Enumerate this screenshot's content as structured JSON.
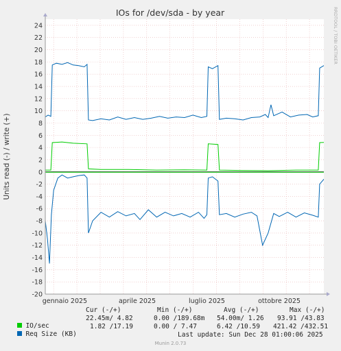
{
  "chart_data": {
    "type": "line",
    "title": "IOs for /dev/sda - by year",
    "ylabel": "Units read (-) / write (+)",
    "side_label": "RRDTOOL / TOBI OETIKER",
    "ylim": [
      -20,
      25
    ],
    "yticks": [
      24,
      22,
      20,
      18,
      16,
      14,
      12,
      10,
      8,
      6,
      4,
      2,
      0,
      -2,
      -4,
      -6,
      -8,
      -10,
      -12,
      -14,
      -16,
      -18,
      -20
    ],
    "x_tick_labels": [
      "gennaio 2025",
      "aprile 2025",
      "luglio 2025",
      "ottobre 2025"
    ],
    "x_ticks": [
      0.07,
      0.33,
      0.58,
      0.84
    ],
    "xlim": [
      0,
      1
    ],
    "series": [
      {
        "name": "Req Size (KB) write",
        "color": "#0066b3",
        "x": [
          0.0,
          0.01,
          0.02,
          0.025,
          0.04,
          0.06,
          0.08,
          0.1,
          0.12,
          0.14,
          0.15,
          0.155,
          0.17,
          0.2,
          0.23,
          0.26,
          0.29,
          0.32,
          0.35,
          0.38,
          0.41,
          0.44,
          0.47,
          0.5,
          0.53,
          0.56,
          0.58,
          0.585,
          0.6,
          0.62,
          0.625,
          0.65,
          0.68,
          0.71,
          0.74,
          0.77,
          0.79,
          0.8,
          0.81,
          0.82,
          0.85,
          0.88,
          0.91,
          0.94,
          0.96,
          0.98,
          0.985,
          1.0,
          1.02,
          1.04
        ],
        "values": [
          9.0,
          9.3,
          9.1,
          17.5,
          17.8,
          17.6,
          17.9,
          17.5,
          17.4,
          17.2,
          17.6,
          8.5,
          8.4,
          8.7,
          8.5,
          9.0,
          8.6,
          8.9,
          8.6,
          8.8,
          9.1,
          8.8,
          9.0,
          8.9,
          9.3,
          8.9,
          9.1,
          17.2,
          16.9,
          17.4,
          8.6,
          8.8,
          8.7,
          8.5,
          8.9,
          9.0,
          9.4,
          8.9,
          11.0,
          9.2,
          9.8,
          9.0,
          9.3,
          9.4,
          9.0,
          9.2,
          17.0,
          17.4,
          17.0,
          16.9
        ]
      },
      {
        "name": "Req Size (KB) read",
        "color": "#0066b3",
        "x": [
          0.0,
          0.008,
          0.015,
          0.022,
          0.03,
          0.045,
          0.06,
          0.08,
          0.1,
          0.12,
          0.14,
          0.15,
          0.155,
          0.17,
          0.2,
          0.23,
          0.26,
          0.29,
          0.32,
          0.34,
          0.37,
          0.4,
          0.43,
          0.46,
          0.49,
          0.52,
          0.55,
          0.57,
          0.58,
          0.585,
          0.6,
          0.62,
          0.625,
          0.65,
          0.68,
          0.71,
          0.74,
          0.76,
          0.78,
          0.8,
          0.82,
          0.84,
          0.87,
          0.9,
          0.93,
          0.96,
          0.98,
          0.985,
          1.0,
          1.02,
          1.04
        ],
        "values": [
          -8,
          -11,
          -15,
          -7,
          -3,
          -1,
          -0.5,
          -1,
          -0.8,
          -0.6,
          -0.5,
          -1,
          -10,
          -8,
          -6.6,
          -7.4,
          -6.5,
          -7.2,
          -6.8,
          -7.8,
          -6.2,
          -7.4,
          -6.6,
          -7.2,
          -6.8,
          -7.4,
          -6.6,
          -7.6,
          -7.0,
          -1.0,
          -0.8,
          -1.5,
          -7.0,
          -6.8,
          -7.4,
          -6.9,
          -6.6,
          -7.2,
          -12,
          -10,
          -6.8,
          -7.3,
          -6.6,
          -7.4,
          -6.7,
          -7.1,
          -7.4,
          -2.0,
          -1.2,
          -1.0,
          -1.8
        ]
      },
      {
        "name": "IO/sec write",
        "color": "#00cc00",
        "x": [
          0.0,
          0.02,
          0.025,
          0.06,
          0.1,
          0.15,
          0.155,
          0.2,
          0.3,
          0.4,
          0.5,
          0.58,
          0.585,
          0.62,
          0.625,
          0.7,
          0.8,
          0.9,
          0.98,
          0.985,
          1.04
        ],
        "values": [
          0.3,
          0.3,
          4.8,
          4.9,
          4.7,
          4.6,
          0.5,
          0.4,
          0.4,
          0.3,
          0.35,
          0.3,
          4.6,
          4.5,
          0.3,
          0.25,
          0.2,
          0.3,
          0.3,
          4.8,
          4.9
        ]
      },
      {
        "name": "IO/sec read",
        "color": "#00cc00",
        "x": [
          0.0,
          0.2,
          0.4,
          0.6,
          0.8,
          1.04
        ],
        "values": [
          -0.05,
          -0.05,
          -0.05,
          -0.05,
          -0.05,
          -0.05
        ]
      }
    ]
  },
  "legend": {
    "headers": [
      "Cur (-/+)",
      "Min (-/+)",
      "Avg (-/+)",
      "Max (-/+)"
    ],
    "rows": [
      {
        "label": "IO/sec",
        "color": "#00cc00",
        "cur": "22.45m/ 4.82",
        "min": "0.00 /189.68m",
        "avg": "54.00m/ 1.26",
        "max": "93.91 /43.83"
      },
      {
        "label": "Req Size (KB)",
        "color": "#0066b3",
        "cur": "1.82 /17.19",
        "min": "0.00 / 7.47",
        "avg": "6.42 /10.59",
        "max": "421.42 /432.51"
      }
    ],
    "last_update": "Last update: Sun Dec 28 01:00:06 2025",
    "footer": "Munin 2.0.73"
  }
}
